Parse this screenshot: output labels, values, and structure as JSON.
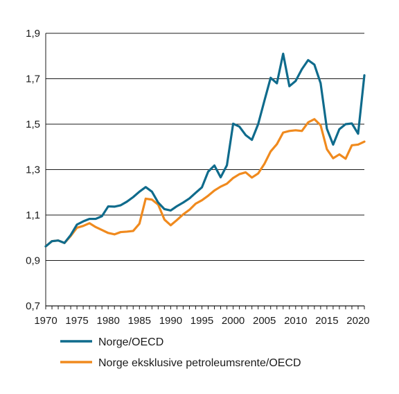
{
  "chart_data": {
    "type": "line",
    "title": "",
    "xlabel": "",
    "ylabel": "",
    "xlim": [
      1970,
      2021
    ],
    "ylim": [
      0.7,
      1.9
    ],
    "yticks": [
      0.7,
      0.9,
      1.1,
      1.3,
      1.5,
      1.7,
      1.9
    ],
    "ytick_labels": [
      "0,7",
      "0,9",
      "1,1",
      "1,3",
      "1,5",
      "1,7",
      "1,9"
    ],
    "xticks": [
      1970,
      1975,
      1980,
      1985,
      1990,
      1995,
      2000,
      2005,
      2010,
      2015,
      2020
    ],
    "xtick_labels": [
      "1970",
      "1975",
      "1980",
      "1985",
      "1990",
      "1995",
      "2000",
      "2005",
      "2010",
      "2015",
      "2020"
    ],
    "grid": "horizontal",
    "legend_position": "bottom",
    "x": [
      1970,
      1971,
      1972,
      1973,
      1974,
      1975,
      1976,
      1977,
      1978,
      1979,
      1980,
      1981,
      1982,
      1983,
      1984,
      1985,
      1986,
      1987,
      1988,
      1989,
      1990,
      1991,
      1992,
      1993,
      1994,
      1995,
      1996,
      1997,
      1998,
      1999,
      2000,
      2001,
      2002,
      2003,
      2004,
      2005,
      2006,
      2007,
      2008,
      2009,
      2010,
      2011,
      2012,
      2013,
      2014,
      2015,
      2016,
      2017,
      2018,
      2019,
      2020,
      2021
    ],
    "series": [
      {
        "name": "Norge/OECD",
        "color": "#0f6b8c",
        "values": [
          0.962,
          0.985,
          0.988,
          0.977,
          1.012,
          1.058,
          1.072,
          1.083,
          1.083,
          1.095,
          1.138,
          1.137,
          1.143,
          1.159,
          1.179,
          1.203,
          1.223,
          1.203,
          1.155,
          1.126,
          1.12,
          1.139,
          1.155,
          1.173,
          1.198,
          1.222,
          1.291,
          1.318,
          1.266,
          1.319,
          1.502,
          1.489,
          1.452,
          1.431,
          1.5,
          1.603,
          1.704,
          1.68,
          1.81,
          1.667,
          1.69,
          1.742,
          1.782,
          1.762,
          1.68,
          1.48,
          1.41,
          1.478,
          1.5,
          1.503,
          1.458,
          1.715
        ]
      },
      {
        "name": "Norge eksklusive petroleumsrente/OECD",
        "color": "#f08a1e",
        "values": [
          0.962,
          0.985,
          0.988,
          0.977,
          1.008,
          1.044,
          1.052,
          1.064,
          1.047,
          1.034,
          1.021,
          1.015,
          1.025,
          1.027,
          1.03,
          1.062,
          1.172,
          1.168,
          1.146,
          1.08,
          1.055,
          1.078,
          1.103,
          1.123,
          1.15,
          1.165,
          1.185,
          1.208,
          1.225,
          1.238,
          1.263,
          1.28,
          1.288,
          1.265,
          1.283,
          1.325,
          1.38,
          1.412,
          1.463,
          1.47,
          1.473,
          1.47,
          1.508,
          1.522,
          1.495,
          1.39,
          1.35,
          1.367,
          1.348,
          1.407,
          1.41,
          1.423
        ]
      }
    ]
  }
}
